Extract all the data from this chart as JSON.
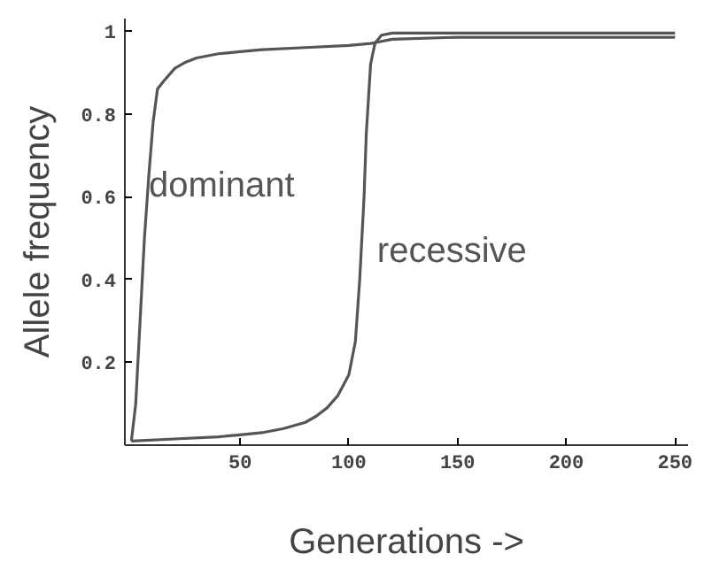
{
  "chart_data": {
    "type": "line",
    "xlabel": "Generations ->",
    "ylabel": "Allele frequency",
    "xlim": [
      -3,
      256
    ],
    "ylim": [
      0,
      1.03
    ],
    "xticks": [
      50,
      100,
      150,
      200,
      250
    ],
    "yticks": [
      0.2,
      0.4,
      0.6,
      0.8,
      1
    ],
    "grid": false,
    "legend": false,
    "marker": "none",
    "line_style": "solid",
    "series": [
      {
        "name": "dominant",
        "color": "#555555",
        "x": [
          0,
          2,
          4,
          6,
          8,
          10,
          12,
          15,
          20,
          25,
          30,
          40,
          50,
          60,
          80,
          100,
          110,
          115,
          120,
          150,
          200,
          250
        ],
        "values": [
          0.01,
          0.1,
          0.3,
          0.5,
          0.65,
          0.78,
          0.86,
          0.88,
          0.91,
          0.925,
          0.935,
          0.945,
          0.95,
          0.955,
          0.96,
          0.965,
          0.97,
          0.975,
          0.98,
          0.985,
          0.985,
          0.985
        ]
      },
      {
        "name": "recessive",
        "color": "#555555",
        "x": [
          0,
          20,
          40,
          50,
          60,
          70,
          80,
          85,
          90,
          95,
          100,
          103,
          105,
          107,
          108,
          110,
          112,
          115,
          120,
          150,
          200,
          250
        ],
        "values": [
          0.01,
          0.015,
          0.02,
          0.025,
          0.03,
          0.04,
          0.055,
          0.07,
          0.09,
          0.12,
          0.17,
          0.25,
          0.4,
          0.6,
          0.75,
          0.92,
          0.97,
          0.99,
          0.995,
          0.995,
          0.995,
          0.995
        ]
      }
    ]
  }
}
